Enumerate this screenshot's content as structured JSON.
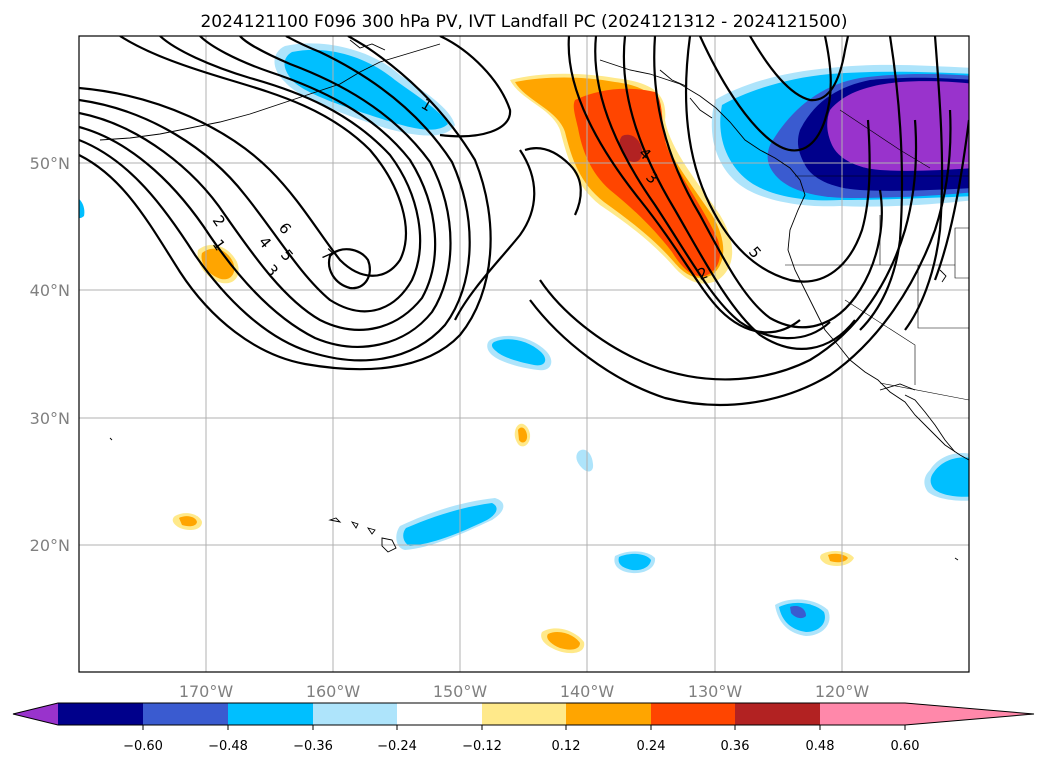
{
  "title": "2024121100 F096 300 hPa PV, IVT Landfall PC (2024121312 - 2024121500)",
  "lat_labels": [
    "50°N",
    "40°N",
    "30°N",
    "20°N"
  ],
  "lon_labels": [
    "170°W",
    "160°W",
    "150°W",
    "140°W",
    "130°W",
    "120°W"
  ],
  "colorbar": {
    "ticks": [
      "−0.60",
      "−0.48",
      "−0.36",
      "−0.24",
      "−0.12",
      "0.12",
      "0.24",
      "0.36",
      "0.48",
      "0.60"
    ],
    "colors": [
      "#9933cc",
      "#00008b",
      "#3a5bd0",
      "#00bfff",
      "#aee4fb",
      "#ffffff",
      "#ffe98a",
      "#ffa500",
      "#ff4500",
      "#b22222",
      "#ff88aa"
    ]
  },
  "contour_labels": [
    "1",
    "2",
    "3",
    "4",
    "5",
    "6",
    "7",
    "1",
    "2",
    "3",
    "4",
    "5"
  ]
}
